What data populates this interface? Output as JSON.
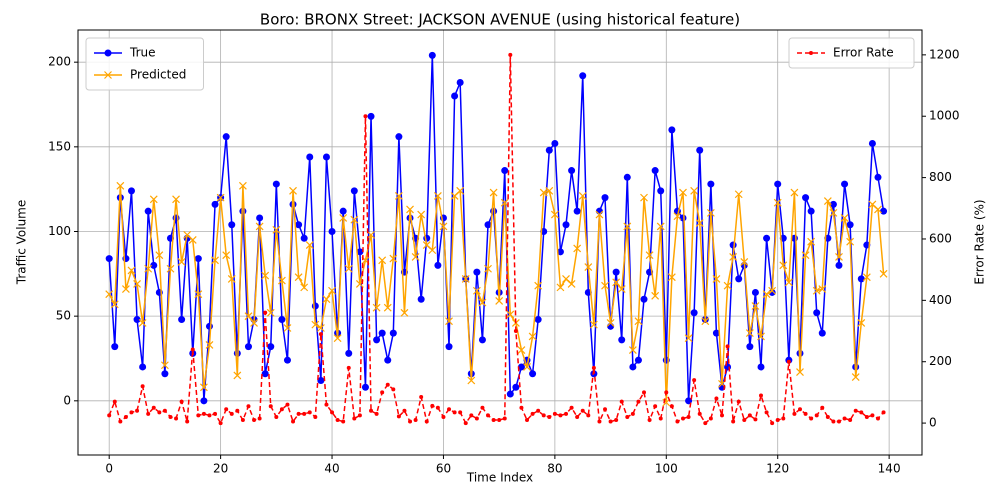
{
  "chart_data": {
    "type": "line",
    "title": "Boro: BRONX Street: JACKSON AVENUE (using historical feature)",
    "x_label": "Time Index",
    "y_label": "Traffic Volume",
    "y2_label": "Error Rate (%)",
    "x": [
      0,
      1,
      2,
      3,
      4,
      5,
      6,
      7,
      8,
      9,
      10,
      11,
      12,
      13,
      14,
      15,
      16,
      17,
      18,
      19,
      20,
      21,
      22,
      23,
      24,
      25,
      26,
      27,
      28,
      29,
      30,
      31,
      32,
      33,
      34,
      35,
      36,
      37,
      38,
      39,
      40,
      41,
      42,
      43,
      44,
      45,
      46,
      47,
      48,
      49,
      50,
      51,
      52,
      53,
      54,
      55,
      56,
      57,
      58,
      59,
      60,
      61,
      62,
      63,
      64,
      65,
      66,
      67,
      68,
      69,
      70,
      71,
      72,
      73,
      74,
      75,
      76,
      77,
      78,
      79,
      80,
      81,
      82,
      83,
      84,
      85,
      86,
      87,
      88,
      89,
      90,
      91,
      92,
      93,
      94,
      95,
      96,
      97,
      98,
      99,
      100,
      101,
      102,
      103,
      104,
      105,
      106,
      107,
      108,
      109,
      110,
      111,
      112,
      113,
      114,
      115,
      116,
      117,
      118,
      119,
      120,
      121,
      122,
      123,
      124,
      125,
      126,
      127,
      128,
      129,
      130,
      131,
      132,
      133,
      134,
      135,
      136,
      137,
      138,
      139
    ],
    "series": [
      {
        "name": "True",
        "color": "#0000ff",
        "marker": "o",
        "linestyle": "solid",
        "axis": "y",
        "values": [
          84,
          32,
          120,
          84,
          124,
          48,
          20,
          112,
          80,
          64,
          16,
          96,
          108,
          48,
          96,
          28,
          84,
          0,
          44,
          116,
          120,
          156,
          104,
          28,
          112,
          32,
          48,
          108,
          16,
          32,
          128,
          48,
          24,
          116,
          104,
          96,
          144,
          56,
          12,
          144,
          100,
          40,
          112,
          28,
          124,
          88,
          8,
          168,
          36,
          40,
          24,
          40,
          156,
          76,
          108,
          96,
          60,
          96,
          204,
          80,
          108,
          32,
          180,
          188,
          72,
          16,
          76,
          36,
          104,
          112,
          64,
          136,
          4,
          8,
          20,
          24,
          16,
          48,
          100,
          148,
          152,
          88,
          104,
          136,
          112,
          192,
          64,
          16,
          112,
          120,
          44,
          76,
          36,
          132,
          20,
          24,
          60,
          76,
          136,
          124,
          24,
          160,
          112,
          108,
          0,
          52,
          148,
          48,
          128,
          40,
          8,
          20,
          92,
          72,
          80,
          32,
          64,
          20,
          96,
          64,
          128,
          96,
          24,
          96,
          28,
          120,
          112,
          52,
          40,
          96,
          116,
          80,
          128,
          104,
          20,
          72,
          92,
          152,
          132,
          112
        ]
      },
      {
        "name": "Predicted",
        "color": "#ffa500",
        "marker": "x",
        "linestyle": "solid",
        "axis": "y",
        "values": [
          63,
          57,
          127,
          66,
          77,
          69,
          46,
          78,
          119,
          86,
          21,
          78,
          119,
          82,
          98,
          95,
          63,
          8,
          33,
          83,
          120,
          86,
          72,
          15,
          127,
          50,
          46,
          103,
          74,
          52,
          101,
          71,
          43,
          124,
          73,
          67,
          92,
          45,
          43,
          60,
          65,
          37,
          108,
          78,
          107,
          69,
          83,
          98,
          55,
          83,
          55,
          84,
          121,
          52,
          113,
          85,
          110,
          92,
          89,
          121,
          103,
          47,
          121,
          124,
          72,
          12,
          65,
          58,
          78,
          123,
          59,
          117,
          51,
          46,
          30,
          20,
          38,
          68,
          123,
          124,
          110,
          67,
          72,
          69,
          90,
          121,
          79,
          45,
          110,
          68,
          46,
          70,
          66,
          103,
          30,
          47,
          120,
          86,
          62,
          103,
          -1,
          73,
          109,
          123,
          37,
          124,
          105,
          47,
          111,
          72,
          10,
          68,
          85,
          122,
          82,
          40,
          56,
          38,
          63,
          65,
          117,
          80,
          70,
          123,
          17,
          86,
          94,
          65,
          66,
          118,
          111,
          85,
          108,
          94,
          14,
          46,
          73,
          116,
          113,
          75
        ]
      },
      {
        "name": "Error Rate",
        "color": "#ff0000",
        "marker": ".",
        "linestyle": "dashed",
        "axis": "y2",
        "values": [
          25,
          70,
          5,
          20,
          35,
          40,
          120,
          30,
          50,
          35,
          40,
          20,
          15,
          70,
          5,
          240,
          25,
          30,
          25,
          30,
          0,
          45,
          30,
          40,
          10,
          55,
          10,
          15,
          360,
          55,
          20,
          45,
          60,
          5,
          30,
          30,
          35,
          20,
          290,
          60,
          35,
          10,
          5,
          180,
          15,
          25,
          1000,
          40,
          30,
          100,
          125,
          110,
          22,
          40,
          5,
          10,
          85,
          5,
          56,
          50,
          20,
          45,
          35,
          35,
          0,
          25,
          15,
          50,
          25,
          10,
          10,
          15,
          1200,
          300,
          50,
          10,
          30,
          40,
          25,
          20,
          30,
          25,
          30,
          50,
          20,
          40,
          25,
          180,
          5,
          45,
          5,
          10,
          70,
          20,
          30,
          70,
          100,
          10,
          55,
          15,
          100,
          55,
          5,
          15,
          20,
          140,
          30,
          0,
          15,
          80,
          25,
          250,
          5,
          70,
          10,
          25,
          12,
          90,
          35,
          0,
          10,
          15,
          200,
          30,
          45,
          30,
          15,
          25,
          50,
          20,
          5,
          5,
          15,
          10,
          40,
          35,
          20,
          25,
          15,
          35
        ]
      }
    ],
    "xlim": [
      -5.6,
      145.9
    ],
    "ylim": [
      -32,
      219
    ],
    "y2lim": [
      -104,
      1281
    ],
    "xticks": [
      0,
      20,
      40,
      60,
      80,
      100,
      120,
      140
    ],
    "yticks": [
      0,
      50,
      100,
      150,
      200
    ],
    "y2ticks": [
      0,
      200,
      400,
      600,
      800,
      1000,
      1200
    ],
    "grid": true,
    "legend_loc": "upper left",
    "legend2_loc": "upper right"
  }
}
